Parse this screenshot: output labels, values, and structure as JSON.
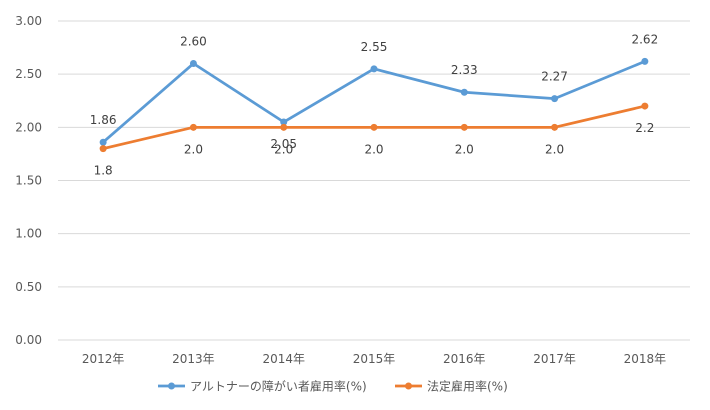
{
  "chart_data": {
    "type": "line",
    "categories": [
      "2012年",
      "2013年",
      "2014年",
      "2015年",
      "2016年",
      "2017年",
      "2018年"
    ],
    "ylim": [
      0,
      3.0
    ],
    "yticks": [
      "0.00",
      "0.50",
      "1.00",
      "1.50",
      "2.00",
      "2.50",
      "3.00"
    ],
    "grid": true,
    "legend_position": "bottom",
    "series": [
      {
        "name": "アルトナーの障がい者雇用率(%)",
        "color": "#5B9BD5",
        "values": [
          1.86,
          2.6,
          2.05,
          2.55,
          2.33,
          2.27,
          2.62
        ],
        "labels": [
          "1.86",
          "2.60",
          "2.05",
          "2.55",
          "2.33",
          "2.27",
          "2.62"
        ]
      },
      {
        "name": "法定雇用率(%)",
        "color": "#ED7D31",
        "values": [
          1.8,
          2.0,
          2.0,
          2.0,
          2.0,
          2.0,
          2.2
        ],
        "labels": [
          "1.8",
          "2.0",
          "2.0",
          "2.0",
          "2.0",
          "2.0",
          "2.2"
        ]
      }
    ]
  }
}
